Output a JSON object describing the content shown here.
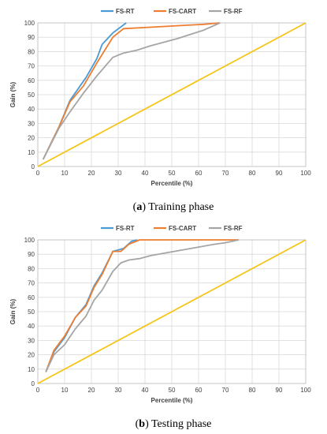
{
  "chart_data": [
    {
      "type": "line",
      "caption_letter": "a",
      "caption_text": "Training phase",
      "xlabel": "Percentile (%)",
      "ylabel": "Gain (%)",
      "xlim": [
        0,
        100
      ],
      "ylim": [
        0,
        100
      ],
      "xticks": [
        0,
        10,
        20,
        30,
        40,
        50,
        60,
        70,
        80,
        90,
        100
      ],
      "yticks": [
        0,
        10,
        20,
        30,
        40,
        50,
        60,
        70,
        80,
        90,
        100
      ],
      "grid": true,
      "legend_position": "top",
      "series": [
        {
          "name": "FS-RT",
          "color": "#4a9bd6",
          "x": [
            2,
            8,
            12,
            18,
            22,
            24,
            28,
            33
          ],
          "y": [
            5,
            28,
            46,
            62,
            75,
            85,
            93,
            100
          ]
        },
        {
          "name": "FS-CART",
          "color": "#ed7d31",
          "x": [
            2,
            8,
            12,
            17,
            22,
            28,
            32,
            42,
            52,
            62,
            68
          ],
          "y": [
            5,
            28,
            45,
            56,
            72,
            90,
            96,
            97,
            98,
            99,
            100
          ]
        },
        {
          "name": "FS-RF",
          "color": "#a5a5a5",
          "x": [
            2,
            8,
            12,
            17,
            22,
            28,
            32,
            37,
            42,
            52,
            62,
            68
          ],
          "y": [
            5,
            27,
            38,
            51,
            63,
            76,
            79,
            81,
            84,
            89,
            95,
            100
          ]
        },
        {
          "name": "",
          "color": "#f5c518",
          "x": [
            0,
            100
          ],
          "y": [
            0,
            100
          ]
        }
      ]
    },
    {
      "type": "line",
      "caption_letter": "b",
      "caption_text": "Testing phase",
      "xlabel": "Percentile (%)",
      "ylabel": "Gain (%)",
      "xlim": [
        0,
        100
      ],
      "ylim": [
        0,
        100
      ],
      "xticks": [
        0,
        10,
        20,
        30,
        40,
        50,
        60,
        70,
        80,
        90,
        100
      ],
      "yticks": [
        0,
        10,
        20,
        30,
        40,
        50,
        60,
        70,
        80,
        90,
        100
      ],
      "grid": true,
      "legend_position": "top",
      "series": [
        {
          "name": "FS-RT",
          "color": "#4a9bd6",
          "x": [
            3,
            6,
            10,
            14,
            18,
            21,
            24,
            28,
            32,
            35,
            37
          ],
          "y": [
            8,
            22,
            32,
            46,
            55,
            68,
            77,
            92,
            94,
            99,
            100
          ]
        },
        {
          "name": "FS-CART",
          "color": "#ed7d31",
          "x": [
            3,
            6,
            10,
            14,
            18,
            21,
            24,
            28,
            31,
            34,
            38,
            55,
            75
          ],
          "y": [
            8,
            23,
            33,
            46,
            54,
            67,
            76,
            92,
            92,
            97,
            100,
            100,
            100
          ]
        },
        {
          "name": "FS-RF",
          "color": "#a5a5a5",
          "x": [
            3,
            6,
            10,
            14,
            18,
            21,
            24,
            28,
            31,
            34,
            38,
            42,
            48,
            54,
            60,
            66,
            70,
            75
          ],
          "y": [
            8,
            20,
            27,
            38,
            47,
            58,
            65,
            78,
            84,
            86,
            87,
            89,
            91,
            93,
            95,
            97,
            98,
            100
          ]
        },
        {
          "name": "",
          "color": "#f5c518",
          "x": [
            0,
            100
          ],
          "y": [
            0,
            100
          ]
        }
      ]
    }
  ]
}
